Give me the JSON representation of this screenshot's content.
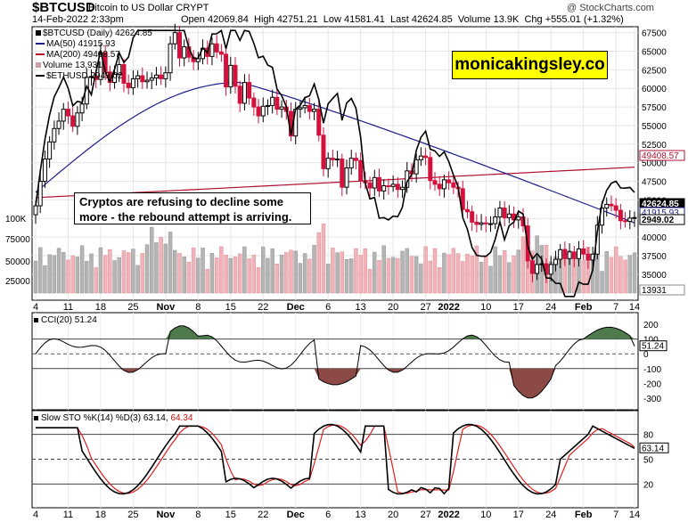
{
  "header": {
    "symbol": "$BTCUSD",
    "description": "Bitcoin to US Dollar  CRYPT",
    "copyright": "@ StockCharts.com",
    "date": "14-Feb-2022 2:33pm",
    "open_label": "Open",
    "open": "42069.84",
    "high_label": "High",
    "high": "42751.21",
    "low_label": "Low",
    "low": "41581.41",
    "last_label": "Last",
    "last": "42624.85",
    "volume_label": "Volume",
    "volume": "13.9K",
    "chg_label": "Chg",
    "chg": "+555.01 (+1.32%)"
  },
  "legend": {
    "price": "$BTCUSD (Daily) 42624.85",
    "ma50": "MA(50) 41915.93",
    "ma200": "MA(200) 49408.57",
    "volume": "Volume 13,931",
    "eth": "$ETHUSD 2949.02"
  },
  "brand": "monicakingsley.co",
  "annotation": "Cryptos are refusing to decline some more - the rebound attempt is arriving.",
  "cci_title": "CCI(20) 51.24",
  "sto_title_a": "Slow STO %K(14) %D(3) 63.14,",
  "sto_title_b": "64.34",
  "colors": {
    "up": "#000000",
    "down": "#d4103c",
    "ma50": "#1c1c8c",
    "ma200": "#b01030",
    "vol_up": "#b4b4b4",
    "vol_down": "#f0b4b8",
    "cci_up": "#4e7a4e",
    "cci_down": "#8c4a46",
    "sto_d": "#e02020"
  },
  "chart_data": [
    {
      "type": "candlestick",
      "title": "$BTCUSD (Daily)",
      "y_axis_ticks": [
        67500,
        65000,
        62500,
        60000,
        57500,
        55000,
        52500,
        50000,
        47500,
        45000,
        42500,
        40000,
        37500,
        35000
      ],
      "ylim": [
        31500,
        68300
      ],
      "x_tick_labels": [
        "4",
        "11",
        "18",
        "25",
        "Nov",
        "8",
        "15",
        "22",
        "Dec",
        "6",
        "13",
        "20",
        "27",
        "2022",
        "10",
        "17",
        "24",
        "Feb",
        "7",
        "14"
      ],
      "close": [
        44200,
        47500,
        50500,
        52800,
        54600,
        55600,
        57200,
        56300,
        54900,
        56700,
        57900,
        61500,
        61600,
        61200,
        64800,
        62200,
        60800,
        61900,
        63200,
        60700,
        60100,
        61300,
        61700,
        60900,
        61100,
        61400,
        61800,
        61300,
        62100,
        66000,
        67500,
        64100,
        65600,
        64200,
        63600,
        64000,
        65400,
        64300,
        66000,
        64900,
        64600,
        60200,
        63100,
        60300,
        58000,
        60800,
        58700,
        57500,
        56300,
        57600,
        57700,
        58800,
        57200,
        57500,
        56900,
        53600,
        57200,
        57400,
        57700,
        56900,
        57200,
        53700,
        49200,
        50600,
        50400,
        50500,
        46700,
        49300,
        50600,
        50300,
        47600,
        47300,
        46600,
        48000,
        46200,
        46900,
        46800,
        47100,
        46400,
        46700,
        48900,
        48500,
        50400,
        50900,
        50700,
        47600,
        47100,
        46500,
        47700,
        47300,
        46700,
        46500,
        43700,
        43400,
        42000,
        41700,
        41900,
        41800,
        41800,
        42700,
        43900,
        42600,
        43100,
        42300,
        42700,
        41500,
        36800,
        35100,
        36300,
        36400,
        35000,
        36300,
        37000,
        38300,
        37100,
        38000,
        37100,
        38400,
        37700,
        36900,
        37700,
        41600,
        43900,
        44400,
        44200,
        43600,
        42200,
        42100,
        42550,
        42624
      ],
      "volume_pattern": "rel. 0-1 scaled; peaks around late Oct, Dec 4 and Jan 21-24",
      "ma50_endpoint": 41915.93,
      "ma200_endpoint": 49408.57,
      "eth_last": 2949.02,
      "volume_last": 13931,
      "right_labels": [
        "49408.57",
        "42624.85",
        "41915.93",
        "2949.02",
        "13931"
      ]
    },
    {
      "type": "line",
      "title": "CCI(20)",
      "last": 51.24,
      "y_axis_ticks": [
        200,
        100,
        0,
        -100,
        -200,
        -300
      ],
      "reference_lines": [
        100,
        0,
        -100
      ],
      "x_tick_labels": [
        "4",
        "11",
        "18",
        "25",
        "Nov",
        "8",
        "15",
        "22",
        "Dec",
        "6",
        "13",
        "20",
        "27",
        "2022",
        "10",
        "17",
        "24",
        "Feb",
        "7",
        "14"
      ]
    },
    {
      "type": "line",
      "title": "Slow STO %K(14) %D(3)",
      "k_last": 63.14,
      "d_last": 64.34,
      "y_axis_ticks": [
        80,
        50,
        20
      ],
      "reference_lines": [
        80,
        50,
        20
      ],
      "x_tick_labels": [
        "4",
        "11",
        "18",
        "25",
        "Nov",
        "8",
        "15",
        "22",
        "Dec",
        "6",
        "13",
        "20",
        "27",
        "2022",
        "10",
        "17",
        "24",
        "Feb",
        "7",
        "14"
      ]
    }
  ]
}
